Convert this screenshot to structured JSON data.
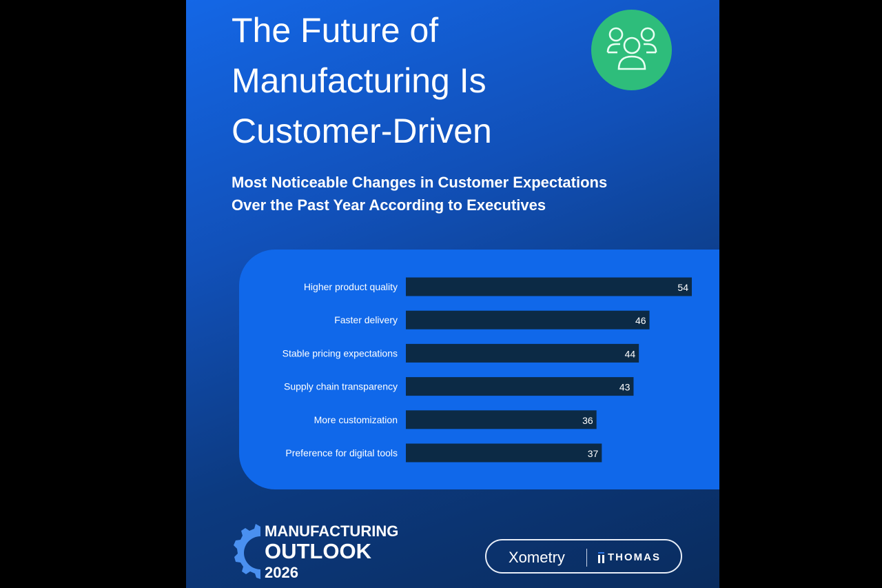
{
  "title_lines": [
    "The Future of",
    "Manufacturing Is",
    "Customer-Driven"
  ],
  "subtitle_lines": [
    "Most Noticeable Changes in Customer Expectations",
    "Over the Past Year According to Executives"
  ],
  "header_icon": "people-group-icon",
  "colors": {
    "panel": "#1467e6",
    "card": "#1068ea",
    "bar": "#0c2a45",
    "icon_circle": "#2ebd7b",
    "gear": "#4a90f0"
  },
  "chart_data": {
    "type": "bar",
    "orientation": "horizontal",
    "categories": [
      "Higher product quality",
      "Faster delivery",
      "Stable pricing expectations",
      "Supply chain transparency",
      "More customization",
      "Preference for digital tools"
    ],
    "values": [
      54,
      46,
      44,
      43,
      36,
      37
    ],
    "data_labels": [
      "54",
      "46",
      "44",
      "43",
      "36",
      "37"
    ],
    "xlim": [
      0,
      54
    ],
    "grid": false
  },
  "footer": {
    "logo_lines": [
      "MANUFACTURING",
      "OUTLOOK",
      "2026"
    ],
    "partner_1": "Xometry",
    "partner_2": "THOMAS"
  }
}
